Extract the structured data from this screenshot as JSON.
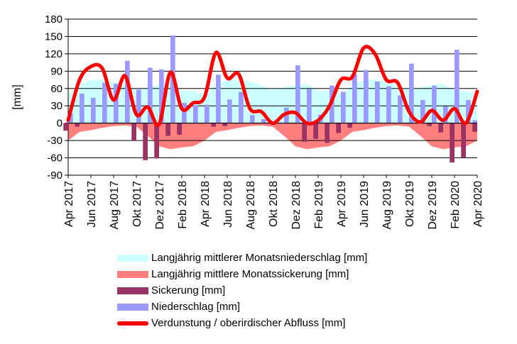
{
  "chart_data": {
    "type": "bar",
    "title": "",
    "xlabel": "",
    "ylabel": "[mm]",
    "ylim": [
      -90,
      180
    ],
    "yticks": [
      -90,
      -60,
      -30,
      0,
      30,
      60,
      90,
      120,
      150,
      180
    ],
    "grid": true,
    "legend_position": "bottom",
    "categories": [
      "Apr 2017",
      "Mai 2017",
      "Jun 2017",
      "Jul 2017",
      "Aug 2017",
      "Sep 2017",
      "Okt 2017",
      "Nov 2017",
      "Dez 2017",
      "Jan 2018",
      "Feb 2018",
      "Mrz 2018",
      "Apr 2018",
      "Mai 2018",
      "Jun 2018",
      "Jul 2018",
      "Aug 2018",
      "Sep 2018",
      "Okt 2018",
      "Nov 2018",
      "Dez 2018",
      "Jan 2019",
      "Feb 2019",
      "Mrz 2019",
      "Apr 2019",
      "Mai 2019",
      "Jun 2019",
      "Jul 2019",
      "Aug 2019",
      "Sep 2019",
      "Okt 2019",
      "Nov 2019",
      "Dez 2019",
      "Jan 2020",
      "Feb 2020",
      "Mrz 2020",
      "Apr 2020"
    ],
    "tick_labels": [
      "Apr 2017",
      "Jun 2017",
      "Aug 2017",
      "Okt 2017",
      "Dez 2017",
      "Feb 2018",
      "Apr 2018",
      "Jun 2018",
      "Aug 2018",
      "Okt 2018",
      "Dez 2018",
      "Feb 2019",
      "Apr 2019",
      "Jun 2019",
      "Aug 2019",
      "Okt 2019",
      "Dez 2019",
      "Feb 2020",
      "Apr 2020"
    ],
    "series": [
      {
        "name": "Langjährig mittlerer Monatsniederschlag [mm]",
        "kind": "area",
        "color": "#ccffff",
        "values": [
          50,
          65,
          75,
          75,
          72,
          65,
          58,
          62,
          66,
          68,
          57,
          55,
          50,
          65,
          75,
          75,
          72,
          65,
          58,
          62,
          66,
          68,
          57,
          55,
          50,
          65,
          75,
          75,
          72,
          65,
          58,
          62,
          66,
          68,
          57,
          55,
          50
        ]
      },
      {
        "name": "Langjährig mittlere Monatssickerung [mm]",
        "kind": "area",
        "color": "#ff7f7f",
        "values": [
          -30,
          -15,
          -12,
          -8,
          -5,
          -4,
          -6,
          -22,
          -40,
          -45,
          -42,
          -40,
          -30,
          -15,
          -12,
          -8,
          -5,
          -4,
          -6,
          -22,
          -40,
          -45,
          -42,
          -40,
          -30,
          -15,
          -12,
          -8,
          -5,
          -4,
          -6,
          -22,
          -40,
          -45,
          -42,
          -40,
          -30
        ]
      },
      {
        "name": "Sickerung [mm]",
        "kind": "bar",
        "color": "#993366",
        "values": [
          -13,
          -6,
          0,
          0,
          0,
          0,
          -30,
          -64,
          -61,
          -22,
          -20,
          0,
          0,
          -6,
          -5,
          0,
          0,
          0,
          0,
          0,
          0,
          -32,
          -27,
          -34,
          -17,
          -8,
          0,
          0,
          0,
          0,
          0,
          0,
          -5,
          -16,
          -68,
          -60,
          -15
        ]
      },
      {
        "name": "Niederschlag [mm]",
        "kind": "bar",
        "color": "#9999ff",
        "values": [
          17,
          51,
          44,
          70,
          68,
          108,
          58,
          96,
          93,
          152,
          35,
          31,
          32,
          84,
          41,
          54,
          14,
          7,
          3,
          27,
          100,
          59,
          15,
          65,
          54,
          85,
          92,
          72,
          64,
          48,
          103,
          40,
          65,
          29,
          127,
          40,
          5
        ]
      },
      {
        "name": "Verdunstung / oberirdischer Abfluss [mm]",
        "kind": "line",
        "color": "#ff0000",
        "values": [
          5,
          75,
          98,
          95,
          40,
          82,
          15,
          28,
          -2,
          88,
          25,
          35,
          45,
          122,
          78,
          85,
          25,
          20,
          0,
          15,
          18,
          0,
          5,
          30,
          75,
          80,
          130,
          120,
          75,
          70,
          20,
          2,
          22,
          5,
          25,
          0,
          55
        ]
      }
    ]
  }
}
